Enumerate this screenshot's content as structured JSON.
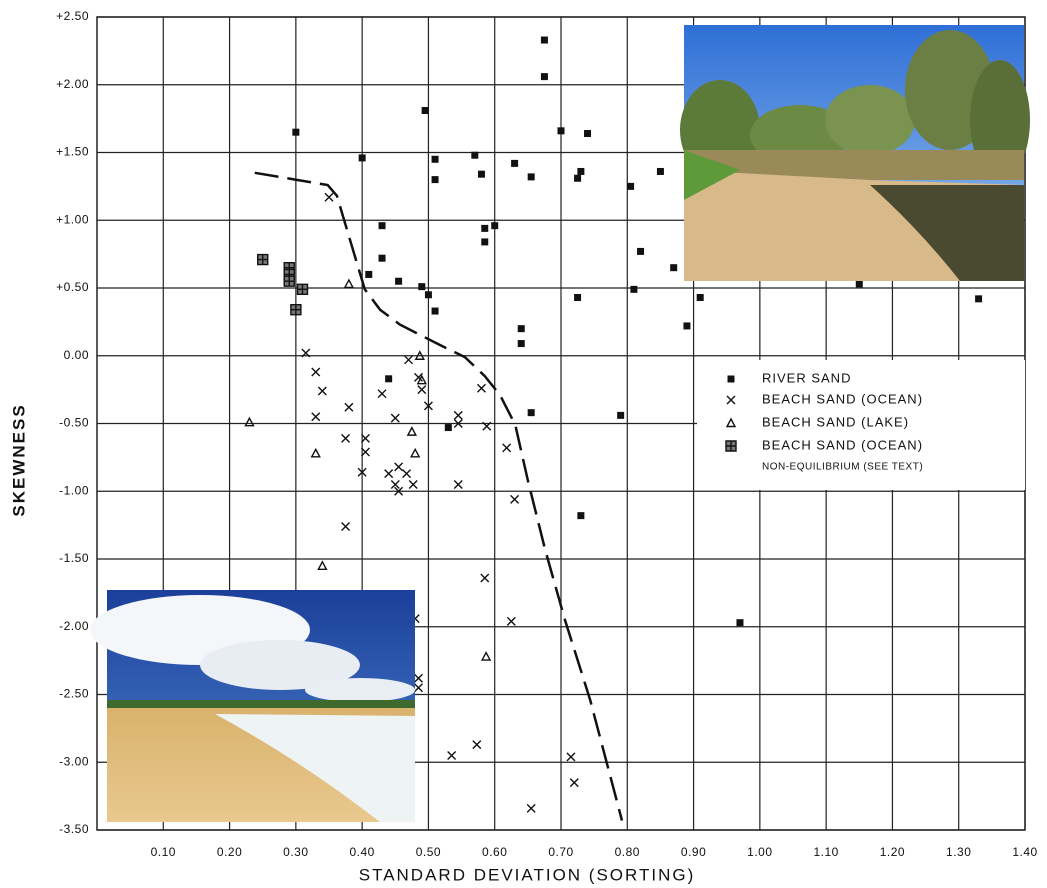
{
  "chart_data": {
    "type": "scatter",
    "x_label": "STANDARD DEVIATION (SORTING)",
    "y_label": "SKEWNESS",
    "xlim": [
      0,
      1.4
    ],
    "ylim": [
      -3.5,
      2.5
    ],
    "xticks": [
      {
        "value": 0.1,
        "label": "0.10"
      },
      {
        "value": 0.2,
        "label": "0.20"
      },
      {
        "value": 0.3,
        "label": "0.30"
      },
      {
        "value": 0.4,
        "label": "0.40"
      },
      {
        "value": 0.5,
        "label": "0.50"
      },
      {
        "value": 0.6,
        "label": "0.60"
      },
      {
        "value": 0.7,
        "label": "0.70"
      },
      {
        "value": 0.8,
        "label": "0.80"
      },
      {
        "value": 0.9,
        "label": "0.90"
      },
      {
        "value": 1.0,
        "label": "1.00"
      },
      {
        "value": 1.1,
        "label": "1.10"
      },
      {
        "value": 1.2,
        "label": "1.20"
      },
      {
        "value": 1.3,
        "label": "1.30"
      },
      {
        "value": 1.4,
        "label": "1.40"
      }
    ],
    "yticks": [
      {
        "value": 2.5,
        "label": "+2.50"
      },
      {
        "value": 2.0,
        "label": "+2.00"
      },
      {
        "value": 1.5,
        "label": "+1.50"
      },
      {
        "value": 1.0,
        "label": "+1.00"
      },
      {
        "value": 0.5,
        "label": "+0.50"
      },
      {
        "value": 0,
        "label": "0.00"
      },
      {
        "value": -0.5,
        "label": "-0.50"
      },
      {
        "value": -1.0,
        "label": "-1.00"
      },
      {
        "value": -1.5,
        "label": "-1.50"
      },
      {
        "value": -2.0,
        "label": "-2.00"
      },
      {
        "value": -2.5,
        "label": "-2.50"
      },
      {
        "value": -3.0,
        "label": "-3.00"
      },
      {
        "value": -3.5,
        "label": "-3.50"
      }
    ],
    "grid": true,
    "series": [
      {
        "name": "RIVER SAND",
        "marker": "square",
        "color": "#111",
        "x": [
          0.3,
          0.495,
          0.4,
          0.51,
          0.51,
          0.57,
          0.58,
          0.63,
          0.655,
          0.675,
          0.675,
          0.7,
          0.74,
          0.725,
          0.73,
          0.805,
          0.85,
          0.43,
          0.585,
          0.585,
          0.6,
          0.43,
          0.41,
          0.455,
          0.49,
          0.5,
          0.51,
          0.64,
          0.64,
          0.82,
          0.81,
          0.87,
          0.725,
          0.91,
          0.89,
          1.15,
          1.33,
          0.44,
          0.655,
          0.53,
          0.79,
          0.73,
          0.97
        ],
        "values": [
          1.65,
          1.81,
          1.46,
          1.45,
          1.3,
          1.48,
          1.34,
          1.42,
          1.32,
          2.33,
          2.06,
          1.66,
          1.64,
          1.31,
          1.36,
          1.25,
          1.36,
          0.96,
          0.94,
          0.84,
          0.96,
          0.72,
          0.6,
          0.55,
          0.51,
          0.45,
          0.33,
          0.2,
          0.09,
          0.77,
          0.49,
          0.65,
          0.43,
          0.43,
          0.22,
          0.53,
          0.42,
          -0.17,
          -0.42,
          -0.53,
          -0.44,
          -1.18,
          -1.97
        ]
      },
      {
        "name": "BEACH SAND (OCEAN)",
        "marker": "x",
        "color": "#111",
        "x": [
          0.35,
          0.315,
          0.33,
          0.34,
          0.33,
          0.38,
          0.375,
          0.405,
          0.405,
          0.4,
          0.43,
          0.44,
          0.45,
          0.45,
          0.455,
          0.455,
          0.467,
          0.477,
          0.47,
          0.485,
          0.49,
          0.5,
          0.545,
          0.545,
          0.545,
          0.58,
          0.588,
          0.618,
          0.63,
          0.375,
          0.585,
          0.625,
          0.485,
          0.485,
          0.535,
          0.573,
          0.655,
          0.715,
          0.72,
          0.48
        ],
        "values": [
          1.17,
          0.02,
          -0.12,
          -0.26,
          -0.45,
          -0.38,
          -0.61,
          -0.61,
          -0.71,
          -0.86,
          -0.28,
          -0.87,
          -0.46,
          -0.95,
          -0.82,
          -1.0,
          -0.87,
          -0.95,
          -0.03,
          -0.16,
          -0.25,
          -0.37,
          -0.44,
          -0.5,
          -0.95,
          -0.24,
          -0.52,
          -0.68,
          -1.06,
          -1.26,
          -1.64,
          -1.96,
          -2.38,
          -2.45,
          -2.95,
          -2.87,
          -3.34,
          -2.96,
          -3.15,
          -1.94
        ]
      },
      {
        "name": "BEACH SAND (LAKE)",
        "marker": "triangle",
        "color": "#111",
        "x": [
          0.23,
          0.38,
          0.33,
          0.34,
          0.475,
          0.48,
          0.487,
          0.49,
          0.587
        ],
        "values": [
          -0.49,
          0.53,
          -0.72,
          -1.55,
          -0.56,
          -0.72,
          0.0,
          -0.18,
          -2.22
        ]
      },
      {
        "name": "BEACH SAND (OCEAN)",
        "marker": "boxed",
        "color": "#111",
        "x": [
          0.25,
          0.29,
          0.29,
          0.29,
          0.31,
          0.3
        ],
        "values": [
          0.71,
          0.65,
          0.6,
          0.55,
          0.49,
          0.34
        ]
      }
    ],
    "legend_note": "NON-EQUILIBRIUM (SEE TEXT)",
    "curve": {
      "x": [
        0.238,
        0.299,
        0.348,
        0.362,
        0.382,
        0.404,
        0.427,
        0.457,
        0.517,
        0.555,
        0.585,
        0.608,
        0.631,
        0.65,
        0.676,
        0.706,
        0.744,
        0.792
      ],
      "y": [
        1.35,
        1.3,
        1.26,
        1.18,
        0.85,
        0.49,
        0.34,
        0.23,
        0.08,
        -0.01,
        -0.15,
        -0.29,
        -0.51,
        -0.92,
        -1.43,
        -1.95,
        -2.54,
        -3.43
      ]
    }
  }
}
